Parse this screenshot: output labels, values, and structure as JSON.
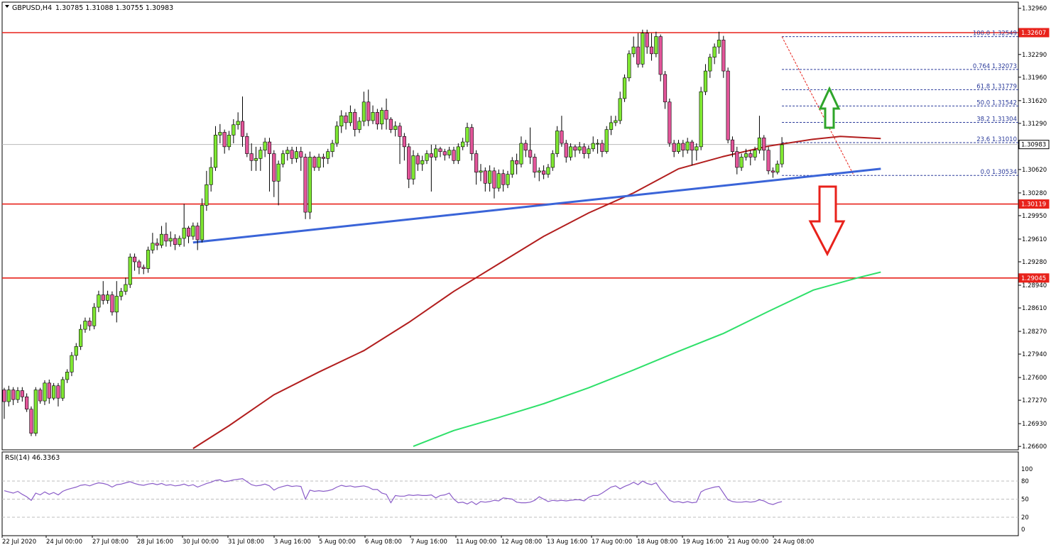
{
  "header": {
    "symbol_label": "GBPUSD,H4",
    "ohlc_label": "1.30785 1.31088 1.30755 1.30983"
  },
  "rsi_panel": {
    "label": "RSI(14) 46.3363",
    "levels": [
      "100",
      "80",
      "50",
      "20",
      "0"
    ]
  },
  "price_axis": {
    "ticks": [
      "1.32960",
      "1.32290",
      "1.31960",
      "1.31620",
      "1.31290",
      "1.30620",
      "1.30280",
      "1.29950",
      "1.29610",
      "1.29280",
      "1.28940",
      "1.28610",
      "1.28270",
      "1.27940",
      "1.27600",
      "1.27270",
      "1.26930",
      "1.26600"
    ]
  },
  "time_axis": {
    "ticks": [
      "22 Jul 2020",
      "24 Jul 00:00",
      "27 Jul 08:00",
      "28 Jul 16:00",
      "30 Jul 00:00",
      "31 Jul 08:00",
      "3 Aug 16:00",
      "5 Aug 00:00",
      "6 Aug 08:00",
      "7 Aug 16:00",
      "11 Aug 00:00",
      "12 Aug 08:00",
      "13 Aug 16:00",
      "17 Aug 00:00",
      "18 Aug 08:00",
      "19 Aug 16:00",
      "21 Aug 00:00",
      "24 Aug 08:00"
    ]
  },
  "price_badges": [
    {
      "label": "1.32607",
      "kind": "level"
    },
    {
      "label": "1.30983",
      "kind": "current"
    },
    {
      "label": "1.30119",
      "kind": "level"
    },
    {
      "label": "1.29045",
      "kind": "level"
    }
  ],
  "fib_labels": [
    "100.0 1.32549",
    "0.764 1.32073",
    "61.8 1.31779",
    "50.0 1.31542",
    "38.2 1.31304",
    "23.6 1.31010",
    "0.0 1.30534"
  ],
  "colors": {
    "bull": "#7fe832",
    "bear": "#e3559a",
    "wick": "#000000",
    "level_line": "#e8221b",
    "trendline": "#3a64d8",
    "ma_red": "#b21e1e",
    "ma_green": "#2fe06a",
    "fib": "#2a3a9a",
    "arrow_up": "#2fa52a",
    "arrow_down": "#e8221b"
  },
  "chart_data": {
    "type": "candlestick",
    "symbol": "GBPUSD",
    "timeframe": "H4",
    "ylim": [
      1.2655,
      1.3305
    ],
    "horizontal_levels": [
      1.32607,
      1.30119,
      1.29045
    ],
    "current_price": 1.30983,
    "fibonacci": [
      {
        "ratio": "100.0",
        "price": 1.32549
      },
      {
        "ratio": "0.764",
        "price": 1.32073
      },
      {
        "ratio": "61.8",
        "price": 1.31779
      },
      {
        "ratio": "50.0",
        "price": 1.31542
      },
      {
        "ratio": "38.2",
        "price": 1.31304
      },
      {
        "ratio": "23.6",
        "price": 1.3101
      },
      {
        "ratio": "0.0",
        "price": 1.30534
      }
    ],
    "trendline": [
      {
        "bar": 42,
        "price": 1.2956
      },
      {
        "bar": 195,
        "price": 1.3063
      }
    ],
    "moving_average_red": [
      [
        42,
        1.2657
      ],
      [
        50,
        1.269
      ],
      [
        60,
        1.2735
      ],
      [
        70,
        1.2768
      ],
      [
        80,
        1.2799
      ],
      [
        90,
        1.284
      ],
      [
        100,
        1.2885
      ],
      [
        110,
        1.2925
      ],
      [
        120,
        1.2965
      ],
      [
        130,
        1.2999
      ],
      [
        140,
        1.3028
      ],
      [
        150,
        1.3063
      ],
      [
        160,
        1.3081
      ],
      [
        170,
        1.3096
      ],
      [
        180,
        1.3106
      ],
      [
        186,
        1.311
      ],
      [
        195,
        1.3107
      ]
    ],
    "moving_average_green": [
      [
        91,
        1.266
      ],
      [
        100,
        1.2683
      ],
      [
        110,
        1.2702
      ],
      [
        120,
        1.2722
      ],
      [
        130,
        1.2745
      ],
      [
        140,
        1.2771
      ],
      [
        150,
        1.2798
      ],
      [
        160,
        1.2824
      ],
      [
        170,
        1.2856
      ],
      [
        180,
        1.2887
      ],
      [
        190,
        1.2905
      ],
      [
        195,
        1.2913
      ]
    ],
    "candles": [
      [
        1.2742,
        1.2725,
        1.2745,
        1.27
      ],
      [
        1.2725,
        1.2742,
        1.2748,
        1.2718
      ],
      [
        1.2742,
        1.2728,
        1.2746,
        1.272
      ],
      [
        1.2728,
        1.2741,
        1.2746,
        1.2723
      ],
      [
        1.2741,
        1.2732,
        1.2746,
        1.2725
      ],
      [
        1.2732,
        1.2714,
        1.2737,
        1.271
      ],
      [
        1.2714,
        1.2679,
        1.2718,
        1.2675
      ],
      [
        1.2679,
        1.2742,
        1.2746,
        1.2675
      ],
      [
        1.2742,
        1.2726,
        1.2745,
        1.2722
      ],
      [
        1.2726,
        1.2752,
        1.2756,
        1.272
      ],
      [
        1.2752,
        1.273,
        1.2757,
        1.2722
      ],
      [
        1.273,
        1.2748,
        1.2752,
        1.2727
      ],
      [
        1.2748,
        1.273,
        1.2752,
        1.2718
      ],
      [
        1.273,
        1.2757,
        1.2761,
        1.2726
      ],
      [
        1.2757,
        1.2768,
        1.2772,
        1.2752
      ],
      [
        1.2768,
        1.2792,
        1.2797,
        1.2762
      ],
      [
        1.2792,
        1.2805,
        1.281,
        1.2785
      ],
      [
        1.2805,
        1.283,
        1.2837,
        1.28
      ],
      [
        1.283,
        1.2842,
        1.2847,
        1.2825
      ],
      [
        1.2842,
        1.2835,
        1.2847,
        1.2828
      ],
      [
        1.2835,
        1.2862,
        1.2868,
        1.283
      ],
      [
        1.2862,
        1.288,
        1.2886,
        1.2855
      ],
      [
        1.288,
        1.2872,
        1.29,
        1.2866
      ],
      [
        1.2872,
        1.288,
        1.2886,
        1.2867
      ],
      [
        1.288,
        1.2855,
        1.2885,
        1.285
      ],
      [
        1.2855,
        1.2878,
        1.29,
        1.284
      ],
      [
        1.2878,
        1.2885,
        1.289,
        1.2872
      ],
      [
        1.2885,
        1.2895,
        1.2905,
        1.288
      ],
      [
        1.2895,
        1.2935,
        1.294,
        1.289
      ],
      [
        1.2935,
        1.2928,
        1.294,
        1.2915
      ],
      [
        1.2928,
        1.292,
        1.2931,
        1.291
      ],
      [
        1.292,
        1.2918,
        1.2924,
        1.291
      ],
      [
        1.2918,
        1.2945,
        1.295,
        1.2912
      ],
      [
        1.2945,
        1.2955,
        1.297,
        1.294
      ],
      [
        1.2955,
        1.2952,
        1.2962,
        1.2945
      ],
      [
        1.2952,
        1.2968,
        1.298,
        1.2948
      ],
      [
        1.2968,
        1.2958,
        1.2985,
        1.295
      ],
      [
        1.2958,
        1.2962,
        1.2972,
        1.295
      ],
      [
        1.2962,
        1.2953,
        1.2968,
        1.2945
      ],
      [
        1.2953,
        1.2962,
        1.2966,
        1.295
      ],
      [
        1.2962,
        1.2977,
        1.3012,
        1.295
      ],
      [
        1.2977,
        1.2965,
        1.298,
        1.2955
      ],
      [
        1.2965,
        1.298,
        1.2985,
        1.296
      ],
      [
        1.298,
        1.296,
        1.2985,
        1.2945
      ],
      [
        1.296,
        1.301,
        1.302,
        1.2956
      ],
      [
        1.301,
        1.304,
        1.306,
        1.3002
      ],
      [
        1.304,
        1.3065,
        1.308,
        1.303
      ],
      [
        1.3065,
        1.3112,
        1.3125,
        1.306
      ],
      [
        1.3112,
        1.3116,
        1.3128,
        1.31
      ],
      [
        1.3116,
        1.3095,
        1.312,
        1.3085
      ],
      [
        1.3095,
        1.3112,
        1.3118,
        1.309
      ],
      [
        1.3112,
        1.3127,
        1.3135,
        1.31
      ],
      [
        1.3127,
        1.3132,
        1.3145,
        1.312
      ],
      [
        1.3132,
        1.311,
        1.3168,
        1.3095
      ],
      [
        1.311,
        1.3085,
        1.3115,
        1.308
      ],
      [
        1.3085,
        1.3075,
        1.31,
        1.306
      ],
      [
        1.3075,
        1.3078,
        1.3095,
        1.306
      ],
      [
        1.3078,
        1.309,
        1.3095,
        1.306
      ],
      [
        1.309,
        1.3102,
        1.3108,
        1.308
      ],
      [
        1.3102,
        1.3085,
        1.3108,
        1.303
      ],
      [
        1.3085,
        1.3045,
        1.309,
        1.3022
      ],
      [
        1.3045,
        1.307,
        1.3075,
        1.301
      ],
      [
        1.307,
        1.3085,
        1.309,
        1.3065
      ],
      [
        1.3085,
        1.309,
        1.3095,
        1.3075
      ],
      [
        1.309,
        1.3078,
        1.3095,
        1.307
      ],
      [
        1.3078,
        1.3088,
        1.3095,
        1.3072
      ],
      [
        1.3088,
        1.308,
        1.3095,
        1.306
      ],
      [
        1.308,
        1.3,
        1.3085,
        1.299
      ],
      [
        1.3,
        1.308,
        1.3088,
        1.299
      ],
      [
        1.308,
        1.3065,
        1.3082,
        1.306
      ],
      [
        1.3065,
        1.308,
        1.3085,
        1.306
      ],
      [
        1.308,
        1.3078,
        1.3085,
        1.3065
      ],
      [
        1.3078,
        1.3088,
        1.3092,
        1.307
      ],
      [
        1.3088,
        1.31,
        1.3105,
        1.308
      ],
      [
        1.31,
        1.3125,
        1.3132,
        1.3095
      ],
      [
        1.3125,
        1.314,
        1.3148,
        1.3115
      ],
      [
        1.314,
        1.313,
        1.3145,
        1.312
      ],
      [
        1.313,
        1.3145,
        1.3155,
        1.3125
      ],
      [
        1.3145,
        1.312,
        1.315,
        1.311
      ],
      [
        1.312,
        1.3132,
        1.3138,
        1.3115
      ],
      [
        1.3132,
        1.316,
        1.3175,
        1.3125
      ],
      [
        1.316,
        1.3133,
        1.3178,
        1.3125
      ],
      [
        1.3133,
        1.3145,
        1.3155,
        1.3128
      ],
      [
        1.3145,
        1.3128,
        1.315,
        1.312
      ],
      [
        1.3128,
        1.3148,
        1.3152,
        1.312
      ],
      [
        1.3148,
        1.3135,
        1.3165,
        1.312
      ],
      [
        1.3135,
        1.312,
        1.3138,
        1.3115
      ],
      [
        1.312,
        1.3125,
        1.3132,
        1.311
      ],
      [
        1.3125,
        1.311,
        1.313,
        1.307
      ],
      [
        1.311,
        1.3095,
        1.3115,
        1.3075
      ],
      [
        1.3095,
        1.3048,
        1.31,
        1.3035
      ],
      [
        1.3048,
        1.3082,
        1.309,
        1.304
      ],
      [
        1.3082,
        1.307,
        1.3086,
        1.306
      ],
      [
        1.307,
        1.3075,
        1.3082,
        1.306
      ],
      [
        1.3075,
        1.3085,
        1.309,
        1.307
      ],
      [
        1.3085,
        1.308,
        1.3098,
        1.303
      ],
      [
        1.308,
        1.3092,
        1.3098,
        1.3075
      ],
      [
        1.3092,
        1.3088,
        1.3095,
        1.308
      ],
      [
        1.3088,
        1.3083,
        1.3092,
        1.3075
      ],
      [
        1.3083,
        1.309,
        1.3095,
        1.3078
      ],
      [
        1.309,
        1.3075,
        1.3095,
        1.307
      ],
      [
        1.3075,
        1.3095,
        1.31,
        1.307
      ],
      [
        1.3095,
        1.3102,
        1.3108,
        1.309
      ],
      [
        1.3102,
        1.3123,
        1.313,
        1.3095
      ],
      [
        1.3123,
        1.3085,
        1.3128,
        1.3075
      ],
      [
        1.3085,
        1.3058,
        1.309,
        1.304
      ],
      [
        1.3058,
        1.306,
        1.307,
        1.3045
      ],
      [
        1.306,
        1.3042,
        1.3065,
        1.303
      ],
      [
        1.3042,
        1.306,
        1.3068,
        1.303
      ],
      [
        1.306,
        1.3035,
        1.3065,
        1.302
      ],
      [
        1.3035,
        1.3056,
        1.3062,
        1.303
      ],
      [
        1.3056,
        1.304,
        1.3062,
        1.303
      ],
      [
        1.304,
        1.3055,
        1.306,
        1.3035
      ],
      [
        1.3055,
        1.3075,
        1.308,
        1.305
      ],
      [
        1.3075,
        1.307,
        1.3085,
        1.3055
      ],
      [
        1.307,
        1.31,
        1.311,
        1.3065
      ],
      [
        1.31,
        1.309,
        1.3105,
        1.308
      ],
      [
        1.309,
        1.308,
        1.3123,
        1.307
      ],
      [
        1.308,
        1.3058,
        1.3085,
        1.305
      ],
      [
        1.3058,
        1.306,
        1.3065,
        1.3045
      ],
      [
        1.306,
        1.3055,
        1.3068,
        1.3048
      ],
      [
        1.3055,
        1.3065,
        1.307,
        1.305
      ],
      [
        1.3065,
        1.3085,
        1.309,
        1.306
      ],
      [
        1.3085,
        1.3118,
        1.3125,
        1.308
      ],
      [
        1.3118,
        1.31,
        1.314,
        1.3095
      ],
      [
        1.31,
        1.308,
        1.3105,
        1.3072
      ],
      [
        1.308,
        1.3095,
        1.31,
        1.3075
      ],
      [
        1.3095,
        1.309,
        1.3098,
        1.308
      ],
      [
        1.309,
        1.3095,
        1.3102,
        1.3085
      ],
      [
        1.3095,
        1.3085,
        1.31,
        1.3078
      ],
      [
        1.3085,
        1.3092,
        1.3097,
        1.3078
      ],
      [
        1.3092,
        1.31,
        1.311,
        1.3088
      ],
      [
        1.31,
        1.31,
        1.3106,
        1.3085
      ],
      [
        1.31,
        1.3088,
        1.3105,
        1.308
      ],
      [
        1.3088,
        1.312,
        1.3125,
        1.3085
      ],
      [
        1.312,
        1.313,
        1.314,
        1.3112
      ],
      [
        1.313,
        1.3133,
        1.314,
        1.3125
      ],
      [
        1.3133,
        1.3165,
        1.3175,
        1.3128
      ],
      [
        1.3165,
        1.3195,
        1.32,
        1.316
      ],
      [
        1.3195,
        1.323,
        1.3235,
        1.319
      ],
      [
        1.323,
        1.324,
        1.3255,
        1.3225
      ],
      [
        1.324,
        1.3215,
        1.326,
        1.321
      ],
      [
        1.3215,
        1.326,
        1.3265,
        1.321
      ],
      [
        1.326,
        1.324,
        1.3265,
        1.323
      ],
      [
        1.324,
        1.323,
        1.326,
        1.322
      ],
      [
        1.323,
        1.3255,
        1.3262,
        1.3225
      ],
      [
        1.3255,
        1.32,
        1.3258,
        1.319
      ],
      [
        1.32,
        1.316,
        1.3205,
        1.315
      ],
      [
        1.316,
        1.31,
        1.3165,
        1.3095
      ],
      [
        1.31,
        1.3088,
        1.3105,
        1.308
      ],
      [
        1.3088,
        1.31,
        1.3105,
        1.3085
      ],
      [
        1.31,
        1.309,
        1.3105,
        1.308
      ],
      [
        1.309,
        1.3102,
        1.3108,
        1.3085
      ],
      [
        1.3102,
        1.309,
        1.3105,
        1.3068
      ],
      [
        1.309,
        1.3095,
        1.31,
        1.3075
      ],
      [
        1.3095,
        1.3175,
        1.3182,
        1.309
      ],
      [
        1.3175,
        1.3205,
        1.3215,
        1.317
      ],
      [
        1.3205,
        1.3225,
        1.323,
        1.3195
      ],
      [
        1.3225,
        1.324,
        1.3245,
        1.3215
      ],
      [
        1.324,
        1.325,
        1.3262,
        1.323
      ],
      [
        1.325,
        1.3205,
        1.3256,
        1.3195
      ],
      [
        1.3205,
        1.3105,
        1.321,
        1.31
      ],
      [
        1.3105,
        1.3088,
        1.311,
        1.308
      ],
      [
        1.3088,
        1.3065,
        1.3095,
        1.3055
      ],
      [
        1.3065,
        1.308,
        1.3085,
        1.306
      ],
      [
        1.308,
        1.3085,
        1.3092,
        1.3075
      ],
      [
        1.3085,
        1.308,
        1.309,
        1.3068
      ],
      [
        1.308,
        1.309,
        1.3095,
        1.3075
      ],
      [
        1.309,
        1.3108,
        1.314,
        1.3085
      ],
      [
        1.3108,
        1.309,
        1.3112,
        1.3075
      ],
      [
        1.309,
        1.306,
        1.3095,
        1.3055
      ],
      [
        1.306,
        1.3058,
        1.3065,
        1.305
      ],
      [
        1.3058,
        1.307,
        1.3075,
        1.3055
      ],
      [
        1.307,
        1.3098,
        1.3109,
        1.3065
      ]
    ],
    "rsi": {
      "label": "RSI(14)",
      "value": 46.3363,
      "ylim": [
        0,
        100
      ],
      "levels": [
        80,
        50,
        20
      ],
      "values": [
        64,
        62,
        60,
        63,
        58,
        54,
        48,
        60,
        57,
        62,
        58,
        61,
        57,
        63,
        66,
        68,
        70,
        73,
        74,
        72,
        75,
        77,
        76,
        74,
        70,
        74,
        75,
        77,
        79,
        76,
        74,
        73,
        75,
        76,
        74,
        76,
        73,
        74,
        72,
        73,
        75,
        72,
        74,
        70,
        73,
        76,
        78,
        81,
        82,
        79,
        80,
        82,
        83,
        84,
        79,
        74,
        72,
        73,
        75,
        72,
        65,
        69,
        71,
        73,
        71,
        72,
        71,
        50,
        65,
        63,
        64,
        63,
        64,
        66,
        70,
        73,
        71,
        72,
        70,
        71,
        72,
        70,
        66,
        66,
        60,
        58,
        44,
        56,
        55,
        55,
        57,
        56,
        57,
        56,
        56,
        57,
        52,
        56,
        57,
        60,
        50,
        44,
        45,
        42,
        46,
        41,
        46,
        45,
        46,
        48,
        47,
        52,
        51,
        50,
        45,
        44,
        44,
        45,
        48,
        54,
        50,
        46,
        48,
        47,
        48,
        47,
        48,
        49,
        49,
        47,
        53,
        56,
        56,
        60,
        65,
        70,
        72,
        67,
        71,
        74,
        78,
        74,
        80,
        76,
        74,
        77,
        66,
        58,
        48,
        45,
        46,
        44,
        46,
        44,
        45,
        62,
        66,
        68,
        70,
        71,
        60,
        49,
        46,
        45,
        45,
        46,
        45,
        46,
        49,
        47,
        43,
        41,
        44,
        46
      ]
    }
  }
}
